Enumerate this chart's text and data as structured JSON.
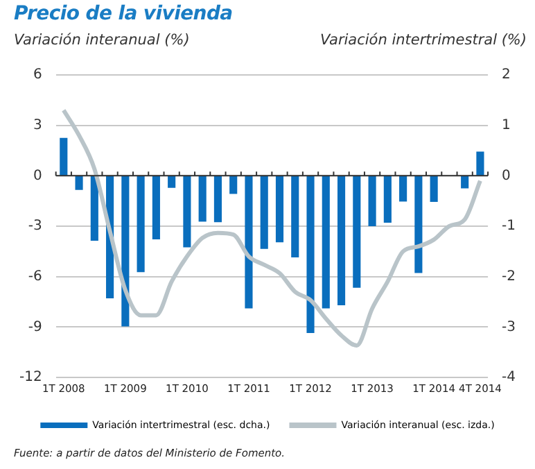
{
  "chart_data": {
    "type": "bar",
    "title": "Precio de la vivienda",
    "ylabel": "Variación interanual (%)",
    "y2label": "Variación intertrimestral (%)",
    "categories": [
      "1T 2008",
      null,
      null,
      null,
      "1T 2009",
      null,
      null,
      null,
      "1T 2010",
      null,
      null,
      null,
      "1T 2011",
      null,
      null,
      null,
      "1T 2012",
      null,
      null,
      null,
      "1T 2013",
      null,
      null,
      null,
      "1T 2014",
      null,
      null,
      "4T 2014"
    ],
    "series": [
      {
        "name": "Variación intertrimestral (esc. dcha.)",
        "axis": "y2",
        "color": "#0a6ebd",
        "values": [
          0.75,
          -0.28,
          -1.29,
          -2.43,
          -2.99,
          -1.91,
          -1.26,
          -0.24,
          -1.42,
          -0.91,
          -0.92,
          -0.36,
          -2.63,
          -1.45,
          -1.32,
          -1.62,
          -3.12,
          -2.63,
          -2.57,
          -2.22,
          -1.0,
          -0.93,
          -0.51,
          -1.93,
          -0.52,
          0,
          -0.25,
          0.48
        ]
      },
      {
        "name": "Variación interanual (esc. izda.)",
        "type": "line",
        "color": "#b9c4c9",
        "values": [
          3.9,
          2.4,
          0.4,
          -3.3,
          -6.8,
          -8.3,
          -8.3,
          -6.3,
          -4.8,
          -3.7,
          -3.4,
          -3.5,
          -4.8,
          -5.3,
          -5.8,
          -6.9,
          -7.4,
          -8.5,
          -9.5,
          -10.1,
          -7.9,
          -6.3,
          -4.5,
          -4.2,
          -3.8,
          -3.0,
          -2.6,
          -0.3
        ]
      }
    ],
    "ylim": [
      -12,
      6
    ],
    "yticks": [
      -12,
      -9,
      -6,
      -3,
      0,
      3,
      6
    ],
    "y2lim": [
      -4,
      2
    ],
    "y2ticks": [
      -4,
      -3,
      -2,
      -1,
      0,
      1,
      2
    ],
    "grid": "y",
    "legend": "bottom",
    "marker": "none",
    "annotations": [
      "Fuente: a partir de datos del Ministerio de Fomento."
    ]
  }
}
